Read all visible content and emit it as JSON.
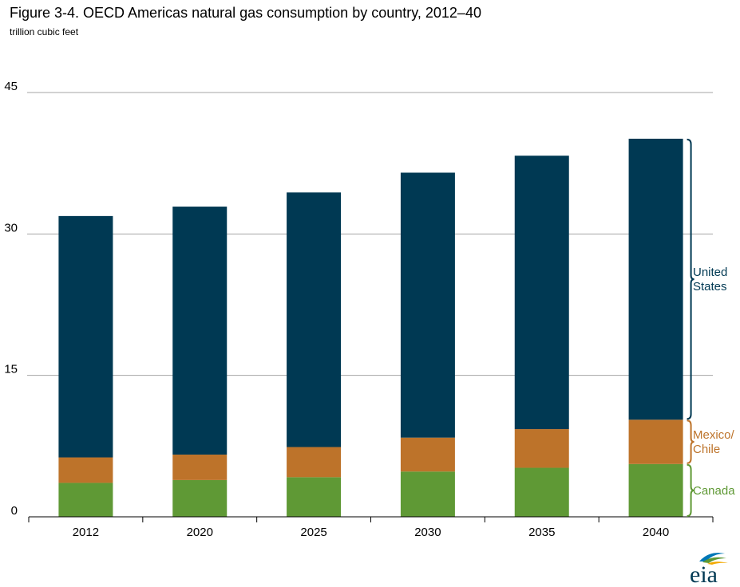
{
  "header": {
    "title": "Figure 3-4. OECD Americas natural gas consumption by country, 2012–40",
    "subtitle": "trillion cubic feet"
  },
  "logo": {
    "text": "eia"
  },
  "chart_data": {
    "type": "bar",
    "stacked": true,
    "title": "Figure 3-4. OECD Americas natural gas consumption by country, 2012–40",
    "ylabel": "trillion cubic feet",
    "xlabel": "",
    "categories": [
      "2012",
      "2020",
      "2025",
      "2030",
      "2035",
      "2040"
    ],
    "ylim": [
      0,
      45
    ],
    "yticks": [
      "0",
      "15",
      "30",
      "45"
    ],
    "ytick_values": [
      0,
      15,
      30,
      45
    ],
    "grid": true,
    "series": [
      {
        "name": "Canada",
        "color": "#5f9935",
        "values": [
          3.6,
          3.9,
          4.2,
          4.8,
          5.2,
          5.6
        ]
      },
      {
        "name": "Mexico/ Chile",
        "color": "#bd732a",
        "values": [
          2.7,
          2.7,
          3.2,
          3.6,
          4.1,
          4.7
        ]
      },
      {
        "name": "United States",
        "color": "#003953",
        "values": [
          25.6,
          26.3,
          27.0,
          28.1,
          29.0,
          29.8
        ]
      }
    ],
    "series_labels": [
      {
        "series": "Canada",
        "lines": [
          "Canada"
        ]
      },
      {
        "series": "Mexico/ Chile",
        "lines": [
          "Mexico/",
          "Chile"
        ]
      },
      {
        "series": "United States",
        "lines": [
          "United",
          "States"
        ]
      }
    ]
  }
}
